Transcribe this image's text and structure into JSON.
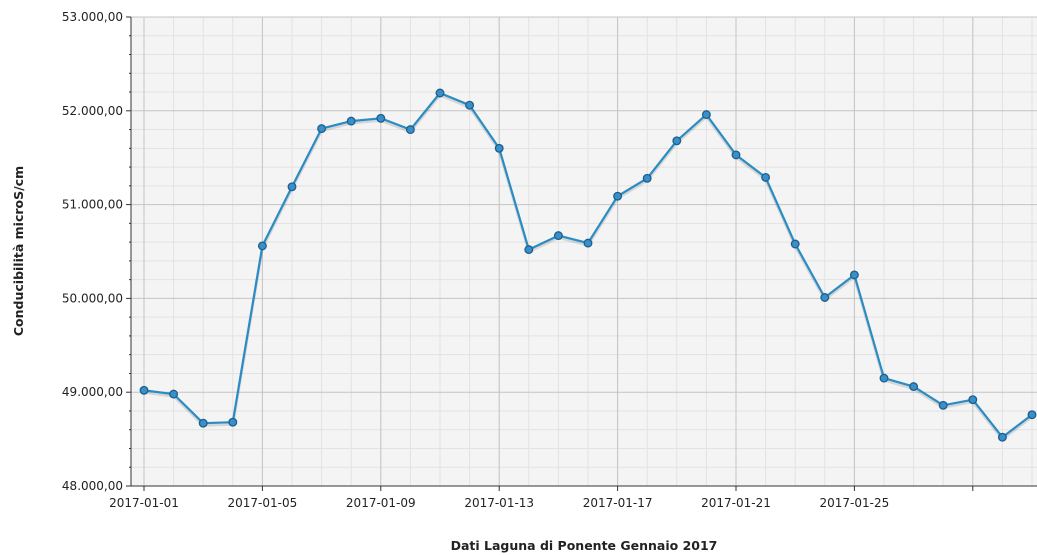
{
  "chart_data": {
    "type": "line",
    "xlabel": "Dati Laguna di Ponente Gennaio 2017",
    "ylabel": "Conducibilità microS/cm",
    "ylim": [
      48000,
      53000
    ],
    "xlim": [
      "2017-01-01",
      "2017-01-31"
    ],
    "grid": true,
    "y_ticks": [
      48000,
      49000,
      50000,
      51000,
      52000,
      53000
    ],
    "y_tick_labels": [
      "48.000,00",
      "49.000,00",
      "50.000,00",
      "51.000,00",
      "52.000,00",
      "53.000,00"
    ],
    "x_ticks": [
      "2017-01-01",
      "2017-01-05",
      "2017-01-09",
      "2017-01-13",
      "2017-01-17",
      "2017-01-21",
      "2017-01-25",
      "2017-01-29"
    ],
    "x_tick_labels": [
      "2017-01-01",
      "2017-01-05",
      "2017-01-09",
      "2017-01-13",
      "2017-01-17",
      "2017-01-21",
      "2017-01-25",
      ""
    ],
    "series": [
      {
        "color": "#2b8cc4",
        "marker_fill": "#3a8fc8",
        "marker_stroke": "#1c5f8f",
        "x": [
          "2017-01-01",
          "2017-01-02",
          "2017-01-03",
          "2017-01-04",
          "2017-01-05",
          "2017-01-06",
          "2017-01-07",
          "2017-01-08",
          "2017-01-09",
          "2017-01-10",
          "2017-01-11",
          "2017-01-12",
          "2017-01-13",
          "2017-01-14",
          "2017-01-15",
          "2017-01-16",
          "2017-01-17",
          "2017-01-18",
          "2017-01-19",
          "2017-01-20",
          "2017-01-21",
          "2017-01-22",
          "2017-01-23",
          "2017-01-24",
          "2017-01-25",
          "2017-01-26",
          "2017-01-27",
          "2017-01-28",
          "2017-01-29",
          "2017-01-30",
          "2017-01-31"
        ],
        "values": [
          49020,
          48980,
          48670,
          48680,
          50560,
          51190,
          51810,
          51890,
          51920,
          51800,
          52190,
          52060,
          51600,
          50520,
          50670,
          50590,
          51090,
          51280,
          51680,
          51960,
          51530,
          51290,
          50580,
          50010,
          50250,
          49150,
          49060,
          48860,
          48920,
          48520,
          48760
        ]
      }
    ]
  }
}
